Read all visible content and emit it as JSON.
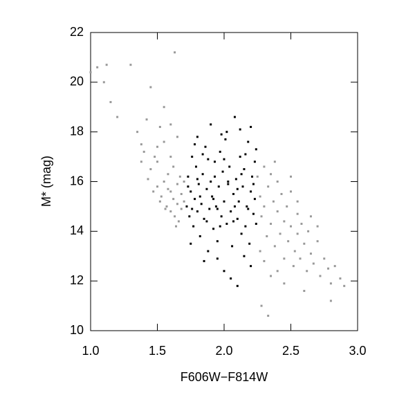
{
  "chart_data": {
    "type": "scatter",
    "x_label": "F606W−F814W",
    "y_label": "M* (mag)",
    "xlim": [
      1.0,
      3.0
    ],
    "ylim": [
      10,
      22
    ],
    "xticks": [
      {
        "value": 1,
        "label": "1.0"
      },
      1.5,
      {
        "value": 2,
        "label": "2.0"
      },
      2.5,
      {
        "value": 3,
        "label": "3.0"
      }
    ],
    "yticks": [
      10,
      12,
      14,
      16,
      18,
      20,
      22
    ],
    "series": [
      {
        "color": "#999999",
        "x": [
          1.0,
          1.05,
          1.1,
          1.12,
          1.15,
          1.2,
          1.3,
          1.35,
          1.38,
          1.4,
          1.42,
          1.45,
          1.45,
          1.48,
          1.5,
          1.5,
          1.52,
          1.53,
          1.55,
          1.55,
          1.57,
          1.58,
          1.6,
          1.6,
          1.6,
          1.62,
          1.62,
          1.63,
          1.65,
          1.65,
          1.66,
          1.67,
          1.68,
          1.68,
          1.7,
          1.7,
          1.47,
          1.52,
          1.56,
          1.58,
          1.64,
          1.43,
          1.5,
          1.6,
          1.65,
          1.63,
          1.38,
          1.55,
          2.25,
          2.27,
          2.28,
          2.3,
          2.3,
          2.32,
          2.33,
          2.35,
          2.35,
          2.37,
          2.38,
          2.4,
          2.4,
          2.42,
          2.43,
          2.45,
          2.45,
          2.47,
          2.48,
          2.5,
          2.5,
          2.52,
          2.53,
          2.55,
          2.55,
          2.57,
          2.58,
          2.6,
          2.62,
          2.63,
          2.65,
          2.67,
          2.7,
          2.72,
          2.75,
          2.78,
          2.8,
          2.83,
          2.87,
          2.9,
          2.35,
          2.45,
          2.6,
          2.28,
          2.33,
          2.3,
          2.4,
          2.5,
          2.38,
          2.27,
          2.55,
          2.65,
          2.7,
          2.8
        ],
        "values": [
          20.4,
          20.6,
          20.0,
          20.7,
          19.2,
          18.6,
          20.7,
          18.0,
          17.5,
          17.2,
          18.5,
          19.8,
          16.5,
          17.0,
          15.8,
          16.8,
          18.2,
          15.4,
          16.0,
          17.6,
          15.0,
          16.3,
          14.8,
          15.6,
          17.0,
          15.3,
          16.6,
          14.6,
          15.9,
          15.1,
          14.4,
          16.2,
          15.5,
          14.9,
          15.2,
          16.0,
          15.6,
          15.2,
          14.9,
          15.7,
          14.2,
          16.1,
          17.4,
          18.3,
          17.8,
          21.2,
          16.8,
          19.0,
          16.2,
          15.4,
          14.6,
          16.6,
          15.0,
          13.8,
          15.8,
          14.3,
          16.3,
          15.2,
          13.4,
          14.8,
          16.0,
          13.9,
          15.5,
          14.4,
          12.9,
          15.0,
          13.6,
          14.2,
          15.6,
          12.6,
          13.2,
          14.7,
          13.9,
          12.9,
          14.3,
          13.5,
          12.4,
          14.0,
          13.1,
          12.7,
          13.6,
          12.2,
          12.9,
          12.5,
          11.9,
          12.6,
          12.1,
          11.8,
          12.2,
          11.9,
          11.6,
          11.0,
          10.6,
          12.8,
          12.4,
          16.2,
          16.8,
          13.2,
          15.2,
          14.6,
          14.2,
          11.2
        ]
      },
      {
        "color": "#000000",
        "x": [
          1.72,
          1.73,
          1.74,
          1.75,
          1.76,
          1.77,
          1.78,
          1.79,
          1.8,
          1.8,
          1.81,
          1.82,
          1.83,
          1.84,
          1.85,
          1.86,
          1.87,
          1.88,
          1.89,
          1.9,
          1.9,
          1.91,
          1.92,
          1.93,
          1.94,
          1.95,
          1.96,
          1.97,
          1.98,
          1.99,
          2.0,
          2.0,
          2.01,
          2.02,
          2.03,
          2.04,
          2.05,
          2.06,
          2.07,
          2.08,
          2.09,
          2.1,
          2.11,
          2.12,
          2.13,
          2.14,
          2.15,
          2.16,
          2.17,
          2.18,
          2.19,
          2.2,
          2.21,
          2.22,
          2.23,
          2.24,
          2.24,
          2.1,
          1.85,
          1.95,
          2.05,
          1.75,
          2.15,
          2.2,
          1.78,
          1.88,
          1.98,
          2.02,
          2.12,
          2.2,
          1.82,
          1.92,
          2.08,
          2.18,
          1.76,
          2.22,
          1.87,
          1.97,
          2.07,
          1.93,
          2.03,
          2.13,
          1.73,
          2.23,
          1.84,
          2.0,
          2.16,
          1.95,
          2.1,
          1.8
        ],
        "values": [
          15.0,
          16.2,
          14.6,
          15.6,
          17.0,
          14.2,
          15.3,
          16.6,
          14.8,
          17.8,
          15.9,
          13.8,
          15.1,
          16.3,
          14.5,
          17.4,
          15.7,
          13.2,
          14.9,
          16.0,
          18.3,
          15.4,
          14.1,
          16.8,
          15.0,
          13.6,
          15.8,
          17.2,
          14.6,
          16.4,
          15.2,
          12.4,
          17.7,
          14.3,
          15.9,
          16.6,
          14.8,
          13.4,
          15.5,
          18.6,
          16.1,
          14.5,
          15.2,
          17.0,
          13.9,
          15.8,
          16.5,
          14.2,
          15.0,
          17.6,
          13.5,
          15.6,
          16.2,
          14.7,
          15.3,
          17.3,
          14.3,
          11.8,
          12.8,
          12.9,
          12.1,
          13.5,
          13.0,
          12.6,
          17.5,
          16.9,
          17.9,
          18.0,
          18.1,
          18.2,
          15.4,
          15.3,
          15.0,
          14.9,
          14.9,
          15.9,
          14.4,
          14.2,
          14.4,
          16.2,
          16.0,
          16.3,
          15.8,
          16.8,
          17.1,
          16.9,
          17.1,
          14.9,
          15.7,
          16.1
        ]
      }
    ]
  }
}
